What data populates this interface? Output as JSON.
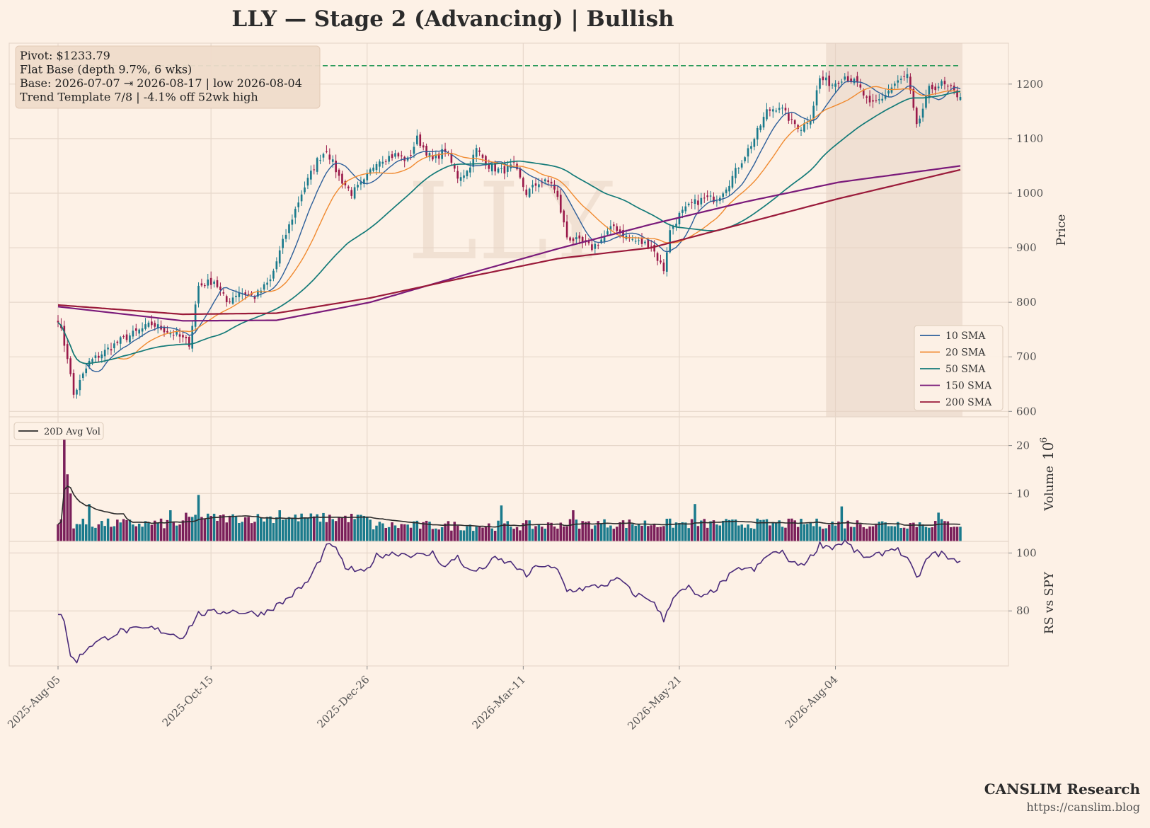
{
  "title": "LLY  —  Stage 2 (Advancing)  |  Bullish",
  "info_box": [
    "Pivot: $1233.79",
    "Flat Base  (depth 9.7%, 6 wks)",
    "Base: 2026-07-07 ⇥ 2026-08-17  |  low 2026-08-04",
    "Trend Template 7/8  |  -4.1% off 52wk high"
  ],
  "watermark": "LLY",
  "branding": {
    "name": "CANSLIM Research",
    "url": "https://canslim.blog"
  },
  "colors": {
    "background": "#fdf1e6",
    "grid": "#e7d8cb",
    "up": "#1a7a8c",
    "down": "#9a1a4a",
    "sma10": "#2d5f9a",
    "sma20": "#f08a30",
    "sma50": "#137a78",
    "sma150": "#7a1a7a",
    "sma200": "#9a1a3a",
    "pivot": "#2a9a5a",
    "rs": "#4a2a7a",
    "avgvol": "#2b2b2b",
    "base_shade": "#e6d2c2"
  },
  "chart_data": {
    "type": "candlestick",
    "date_range": [
      "2025-08-05",
      "2026-08-17"
    ],
    "x_ticks": [
      "2025-Aug-05",
      "2025-Oct-15",
      "2025-Dec-26",
      "2026-Mar-11",
      "2026-May-21",
      "2026-Aug-04"
    ],
    "price_panel": {
      "ylabel": "Price",
      "ylim": [
        590,
        1275
      ],
      "y_ticks": [
        600,
        700,
        800,
        900,
        1000,
        1100,
        1200
      ],
      "pivot": 1233.79,
      "base_shading": [
        "2026-07-07",
        "2026-08-17"
      ],
      "close_anchors": [
        [
          0,
          770
        ],
        [
          3,
          700
        ],
        [
          5,
          630
        ],
        [
          10,
          690
        ],
        [
          20,
          730
        ],
        [
          30,
          760
        ],
        [
          38,
          740
        ],
        [
          42,
          725
        ],
        [
          45,
          830
        ],
        [
          50,
          840
        ],
        [
          54,
          800
        ],
        [
          58,
          820
        ],
        [
          63,
          810
        ],
        [
          68,
          840
        ],
        [
          72,
          910
        ],
        [
          78,
          1000
        ],
        [
          83,
          1060
        ],
        [
          86,
          1080
        ],
        [
          90,
          1030
        ],
        [
          94,
          1000
        ],
        [
          98,
          1020
        ],
        [
          102,
          1060
        ],
        [
          108,
          1070
        ],
        [
          112,
          1060
        ],
        [
          115,
          1100
        ],
        [
          120,
          1060
        ],
        [
          124,
          1080
        ],
        [
          128,
          1030
        ],
        [
          131,
          1040
        ],
        [
          134,
          1080
        ],
        [
          138,
          1050
        ],
        [
          142,
          1040
        ],
        [
          146,
          1050
        ],
        [
          150,
          1000
        ],
        [
          154,
          1020
        ],
        [
          158,
          1020
        ],
        [
          160,
          990
        ],
        [
          163,
          920
        ],
        [
          167,
          910
        ],
        [
          171,
          900
        ],
        [
          175,
          920
        ],
        [
          178,
          940
        ],
        [
          182,
          920
        ],
        [
          186,
          910
        ],
        [
          190,
          905
        ],
        [
          192,
          880
        ],
        [
          194,
          860
        ],
        [
          196,
          930
        ],
        [
          199,
          960
        ],
        [
          203,
          980
        ],
        [
          207,
          990
        ],
        [
          211,
          990
        ],
        [
          215,
          1020
        ],
        [
          219,
          1060
        ],
        [
          223,
          1100
        ],
        [
          227,
          1150
        ],
        [
          231,
          1160
        ],
        [
          235,
          1130
        ],
        [
          238,
          1120
        ],
        [
          241,
          1140
        ],
        [
          244,
          1210
        ],
        [
          248,
          1200
        ],
        [
          252,
          1215
        ],
        [
          256,
          1200
        ],
        [
          260,
          1160
        ],
        [
          264,
          1175
        ],
        [
          268,
          1200
        ],
        [
          272,
          1215
        ],
        [
          275,
          1120
        ],
        [
          279,
          1190
        ],
        [
          283,
          1200
        ],
        [
          286,
          1190
        ],
        [
          288,
          1180
        ]
      ],
      "legend": [
        {
          "name": "10 SMA",
          "color": "#2d5f9a"
        },
        {
          "name": "20 SMA",
          "color": "#f08a30"
        },
        {
          "name": "50 SMA",
          "color": "#137a78"
        },
        {
          "name": "150 SMA",
          "color": "#7a1a7a"
        },
        {
          "name": "200 SMA",
          "color": "#9a1a3a"
        }
      ],
      "legend_placement": "lower-right",
      "sma150": [
        [
          0,
          792
        ],
        [
          40,
          766
        ],
        [
          70,
          767
        ],
        [
          100,
          800
        ],
        [
          130,
          850
        ],
        [
          160,
          898
        ],
        [
          190,
          943
        ],
        [
          220,
          984
        ],
        [
          250,
          1020
        ],
        [
          289,
          1050
        ]
      ],
      "sma200": [
        [
          0,
          795
        ],
        [
          40,
          778
        ],
        [
          70,
          780
        ],
        [
          100,
          808
        ],
        [
          130,
          845
        ],
        [
          160,
          880
        ],
        [
          190,
          900
        ],
        [
          220,
          945
        ],
        [
          250,
          990
        ],
        [
          289,
          1043
        ]
      ]
    },
    "volume_panel": {
      "ylabel": "Volume",
      "unit_label": "10",
      "unit_exponent": "6",
      "ylim": [
        0,
        26
      ],
      "y_ticks": [
        10,
        20
      ],
      "legend": [
        {
          "name": "20D Avg Vol",
          "color": "#2b2b2b"
        }
      ],
      "legend_placement": "upper-left",
      "spikes": [
        [
          2,
          24
        ],
        [
          3,
          14
        ],
        [
          4,
          10
        ],
        [
          10,
          7.8
        ],
        [
          36,
          6.5
        ],
        [
          45,
          9.7
        ],
        [
          71,
          6.5
        ],
        [
          142,
          7.5
        ],
        [
          165,
          6.5
        ],
        [
          204,
          7.8
        ],
        [
          251,
          7.3
        ],
        [
          282,
          6
        ]
      ]
    },
    "rs_panel": {
      "ylabel": "RS vs SPY",
      "ylim": [
        61,
        104
      ],
      "y_ticks": [
        80,
        100
      ],
      "anchors": [
        [
          0,
          79
        ],
        [
          2,
          77
        ],
        [
          4,
          64
        ],
        [
          6,
          63
        ],
        [
          10,
          68
        ],
        [
          20,
          73
        ],
        [
          30,
          74
        ],
        [
          40,
          71
        ],
        [
          45,
          79
        ],
        [
          55,
          80
        ],
        [
          65,
          79
        ],
        [
          72,
          83
        ],
        [
          80,
          90
        ],
        [
          86,
          102
        ],
        [
          88,
          103
        ],
        [
          92,
          95
        ],
        [
          98,
          93
        ],
        [
          102,
          99
        ],
        [
          108,
          100
        ],
        [
          117,
          99
        ],
        [
          120,
          100
        ],
        [
          124,
          95
        ],
        [
          128,
          99
        ],
        [
          131,
          94
        ],
        [
          135,
          94
        ],
        [
          140,
          98
        ],
        [
          146,
          96
        ],
        [
          150,
          92
        ],
        [
          154,
          96
        ],
        [
          160,
          94
        ],
        [
          163,
          87
        ],
        [
          170,
          88
        ],
        [
          175,
          89
        ],
        [
          180,
          91
        ],
        [
          184,
          86
        ],
        [
          190,
          84
        ],
        [
          194,
          77
        ],
        [
          197,
          85
        ],
        [
          202,
          88
        ],
        [
          206,
          84
        ],
        [
          211,
          88
        ],
        [
          215,
          92
        ],
        [
          219,
          95
        ],
        [
          223,
          94
        ],
        [
          228,
          100
        ],
        [
          232,
          100
        ],
        [
          236,
          96
        ],
        [
          240,
          97
        ],
        [
          244,
          103
        ],
        [
          248,
          102
        ],
        [
          252,
          104
        ],
        [
          256,
          100
        ],
        [
          260,
          98
        ],
        [
          264,
          100
        ],
        [
          268,
          102
        ],
        [
          272,
          98
        ],
        [
          275,
          91
        ],
        [
          279,
          99
        ],
        [
          283,
          100
        ],
        [
          286,
          97
        ],
        [
          289,
          98
        ]
      ]
    }
  }
}
